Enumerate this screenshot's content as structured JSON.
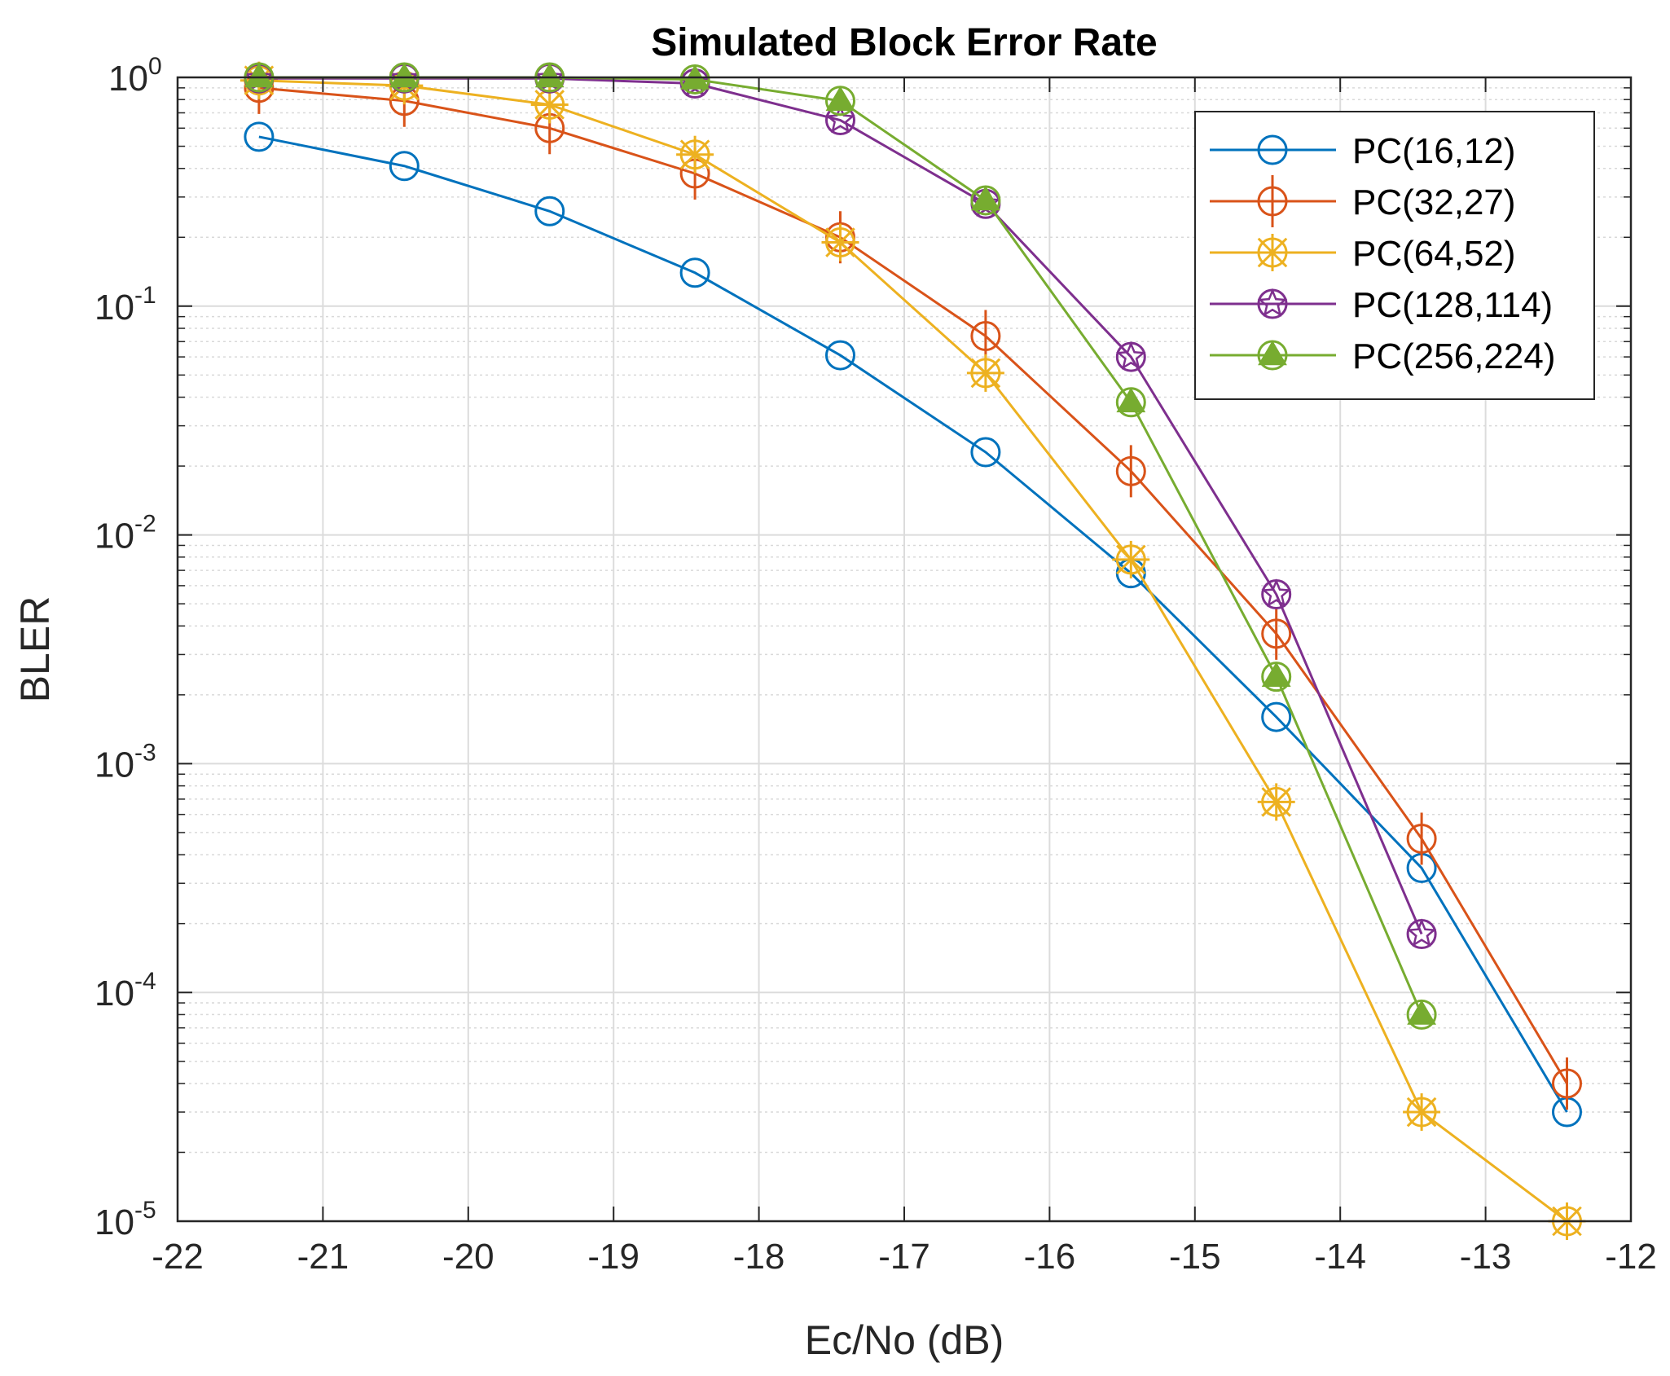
{
  "chart_data": {
    "type": "line",
    "title": "Simulated Block Error Rate",
    "xlabel": "Ec/No (dB)",
    "ylabel": "BLER",
    "xlim": [
      -22,
      -12
    ],
    "xscale": "linear",
    "yscale": "log",
    "ylim": [
      1e-05,
      1
    ],
    "xticks": [
      -22,
      -21,
      -20,
      -19,
      -18,
      -17,
      -16,
      -15,
      -14,
      -13,
      -12
    ],
    "xtick_labels": [
      "-22",
      "-21",
      "-20",
      "-19",
      "-18",
      "-17",
      "-16",
      "-15",
      "-14",
      "-13",
      "-12"
    ],
    "ytick_labels": [
      {
        "base": "10",
        "exp": "0"
      },
      {
        "base": "10",
        "exp": "-1"
      },
      {
        "base": "10",
        "exp": "-2"
      },
      {
        "base": "10",
        "exp": "-3"
      },
      {
        "base": "10",
        "exp": "-4"
      },
      {
        "base": "10",
        "exp": "-5"
      }
    ],
    "grid": true,
    "legend_position": "top-right",
    "series": [
      {
        "name": "PC(16,12)",
        "color": "#0072BD",
        "marker": "circle",
        "x": [
          -21.44,
          -20.44,
          -19.44,
          -18.44,
          -17.44,
          -16.44,
          -15.44,
          -14.44,
          -13.44,
          -12.44
        ],
        "y": [
          0.55,
          0.41,
          0.26,
          0.14,
          0.061,
          0.023,
          0.0068,
          0.0016,
          0.00035,
          3e-05
        ]
      },
      {
        "name": "PC(32,27)",
        "color": "#D95319",
        "marker": "circle-plus",
        "x": [
          -21.44,
          -20.44,
          -19.44,
          -18.44,
          -17.44,
          -16.44,
          -15.44,
          -14.44,
          -13.44,
          -12.44
        ],
        "y": [
          0.9,
          0.79,
          0.6,
          0.38,
          0.2,
          0.074,
          0.019,
          0.0037,
          0.00047,
          4e-05
        ]
      },
      {
        "name": "PC(64,52)",
        "color": "#EDB120",
        "marker": "circle-asterisk",
        "x": [
          -21.44,
          -20.44,
          -19.44,
          -18.44,
          -17.44,
          -16.44,
          -15.44,
          -14.44,
          -13.44,
          -12.44
        ],
        "y": [
          0.97,
          0.92,
          0.76,
          0.46,
          0.19,
          0.051,
          0.0078,
          0.00068,
          3e-05,
          1e-05
        ]
      },
      {
        "name": "PC(128,114)",
        "color": "#7E2F8E",
        "marker": "circle-star",
        "x": [
          -21.44,
          -20.44,
          -19.44,
          -18.44,
          -17.44,
          -15.44,
          -16.44,
          -14.44,
          -13.44
        ],
        "y": [
          0.99,
          0.99,
          0.99,
          0.94,
          0.65,
          0.06,
          0.28,
          0.0055,
          0.00018
        ]
      },
      {
        "name": "PC(256,224)",
        "color": "#77AC30",
        "marker": "circle-triangle",
        "x": [
          -21.44,
          -20.44,
          -19.44,
          -18.44,
          -17.44,
          -16.44,
          -15.44,
          -14.44,
          -13.44
        ],
        "y": [
          1.0,
          1.0,
          1.0,
          0.98,
          0.79,
          0.29,
          0.038,
          0.0024,
          8e-05
        ]
      }
    ]
  }
}
